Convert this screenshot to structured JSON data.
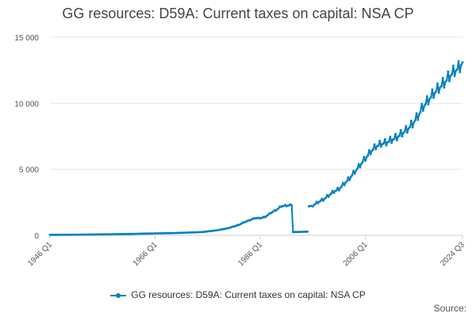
{
  "title": "GG resources: D59A: Current taxes on capital: NSA CP",
  "source_label": "Source:",
  "colors": {
    "series": "#0080c0",
    "grid": "#e6e6e6",
    "axis": "#cccccc"
  },
  "chart_data": {
    "type": "line",
    "title": "GG resources: D59A: Current taxes on capital: NSA CP",
    "xlabel": "",
    "ylabel": "",
    "x_range": [
      "1946 Q1",
      "2024 Q3"
    ],
    "ylim": [
      0,
      15000
    ],
    "y_ticks": [
      0,
      5000,
      10000,
      15000
    ],
    "y_tick_labels": [
      "0",
      "5 000",
      "10 000",
      "15 000"
    ],
    "x_tick_labels": [
      "1946 Q1",
      "1966 Q1",
      "1986 Q1",
      "2006 Q1",
      "2024 Q3"
    ],
    "grid": "horizontal",
    "legend": "bottom",
    "series": [
      {
        "name": "GG resources: D59A: Current taxes on capital: NSA CP",
        "points": [
          [
            "1946 Q1",
            40
          ],
          [
            "1950 Q1",
            50
          ],
          [
            "1955 Q1",
            70
          ],
          [
            "1960 Q1",
            100
          ],
          [
            "1965 Q1",
            140
          ],
          [
            "1970 Q1",
            180
          ],
          [
            "1975 Q1",
            250
          ],
          [
            "1978 Q1",
            400
          ],
          [
            "1980 Q1",
            550
          ],
          [
            "1982 Q1",
            800
          ],
          [
            "1983 Q1",
            1000
          ],
          [
            "1984 Q1",
            1150
          ],
          [
            "1985 Q1",
            1300
          ],
          [
            "1986 Q1",
            1300
          ],
          [
            "1987 Q1",
            1400
          ],
          [
            "1988 Q1",
            1700
          ],
          [
            "1989 Q1",
            1900
          ],
          [
            "1990 Q1",
            2200
          ],
          [
            "1991 Q1",
            2250
          ],
          [
            "1992 Q1",
            2280
          ],
          [
            "1992 Q2",
            250
          ],
          [
            "1993 Q1",
            260
          ],
          [
            "1994 Q1",
            270
          ],
          [
            "1995 Q1",
            280
          ],
          [
            "1995 Q2",
            2200
          ],
          [
            "1996 Q1",
            2250
          ],
          [
            "1997 Q1",
            2500
          ],
          [
            "1998 Q1",
            2700
          ],
          [
            "1999 Q1",
            3000
          ],
          [
            "2000 Q1",
            3300
          ],
          [
            "2001 Q1",
            3500
          ],
          [
            "2002 Q1",
            3900
          ],
          [
            "2003 Q1",
            4300
          ],
          [
            "2004 Q1",
            4800
          ],
          [
            "2005 Q1",
            5300
          ],
          [
            "2006 Q1",
            5800
          ],
          [
            "2007 Q1",
            6300
          ],
          [
            "2008 Q1",
            6700
          ],
          [
            "2009 Q1",
            6900
          ],
          [
            "2010 Q1",
            7000
          ],
          [
            "2011 Q1",
            7200
          ],
          [
            "2012 Q1",
            7400
          ],
          [
            "2013 Q1",
            7700
          ],
          [
            "2014 Q1",
            8000
          ],
          [
            "2015 Q1",
            8400
          ],
          [
            "2016 Q1",
            9000
          ],
          [
            "2017 Q1",
            9700
          ],
          [
            "2018 Q1",
            10200
          ],
          [
            "2019 Q1",
            10700
          ],
          [
            "2020 Q1",
            11100
          ],
          [
            "2021 Q1",
            11500
          ],
          [
            "2022 Q1",
            12000
          ],
          [
            "2023 Q1",
            12400
          ],
          [
            "2024 Q1",
            12700
          ],
          [
            "2024 Q3",
            13100
          ]
        ]
      }
    ]
  }
}
